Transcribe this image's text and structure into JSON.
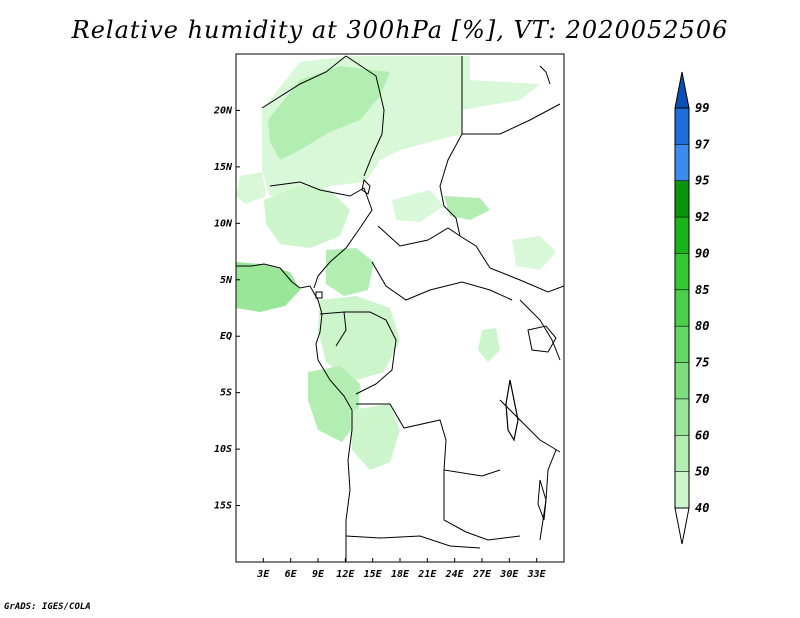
{
  "title": "Relative humidity at 300hPa [%], VT: 2020052506",
  "credit": "GrADS: IGES/COLA",
  "map": {
    "lon_range": [
      0,
      36
    ],
    "lat_range": [
      -20,
      25
    ],
    "lon_ticks": [
      "3E",
      "6E",
      "9E",
      "12E",
      "15E",
      "18E",
      "21E",
      "24E",
      "27E",
      "30E",
      "33E"
    ],
    "lat_ticks": [
      "20N",
      "15N",
      "10N",
      "5N",
      "EQ",
      "5S",
      "10S",
      "15S"
    ],
    "features": [
      "country-borders",
      "coastlines",
      "lakes"
    ],
    "shading": "light-green patches of relative humidity over West-Central Africa, Gulf of Guinea and Congo basin"
  },
  "colorbar": {
    "levels": [
      "40",
      "50",
      "60",
      "70",
      "75",
      "80",
      "85",
      "90",
      "92",
      "95",
      "97",
      "99"
    ],
    "colors": [
      "#e6fce6",
      "#ccf5cc",
      "#b2eeb2",
      "#99e699",
      "#7dde7d",
      "#64d764",
      "#4bcf4b",
      "#32c832",
      "#19b419",
      "#0a960a",
      "#3c8cf0",
      "#1e6edc",
      "#0a50b4"
    ],
    "arrow_low": "#ffffff",
    "arrow_high": "#0a50b4"
  }
}
